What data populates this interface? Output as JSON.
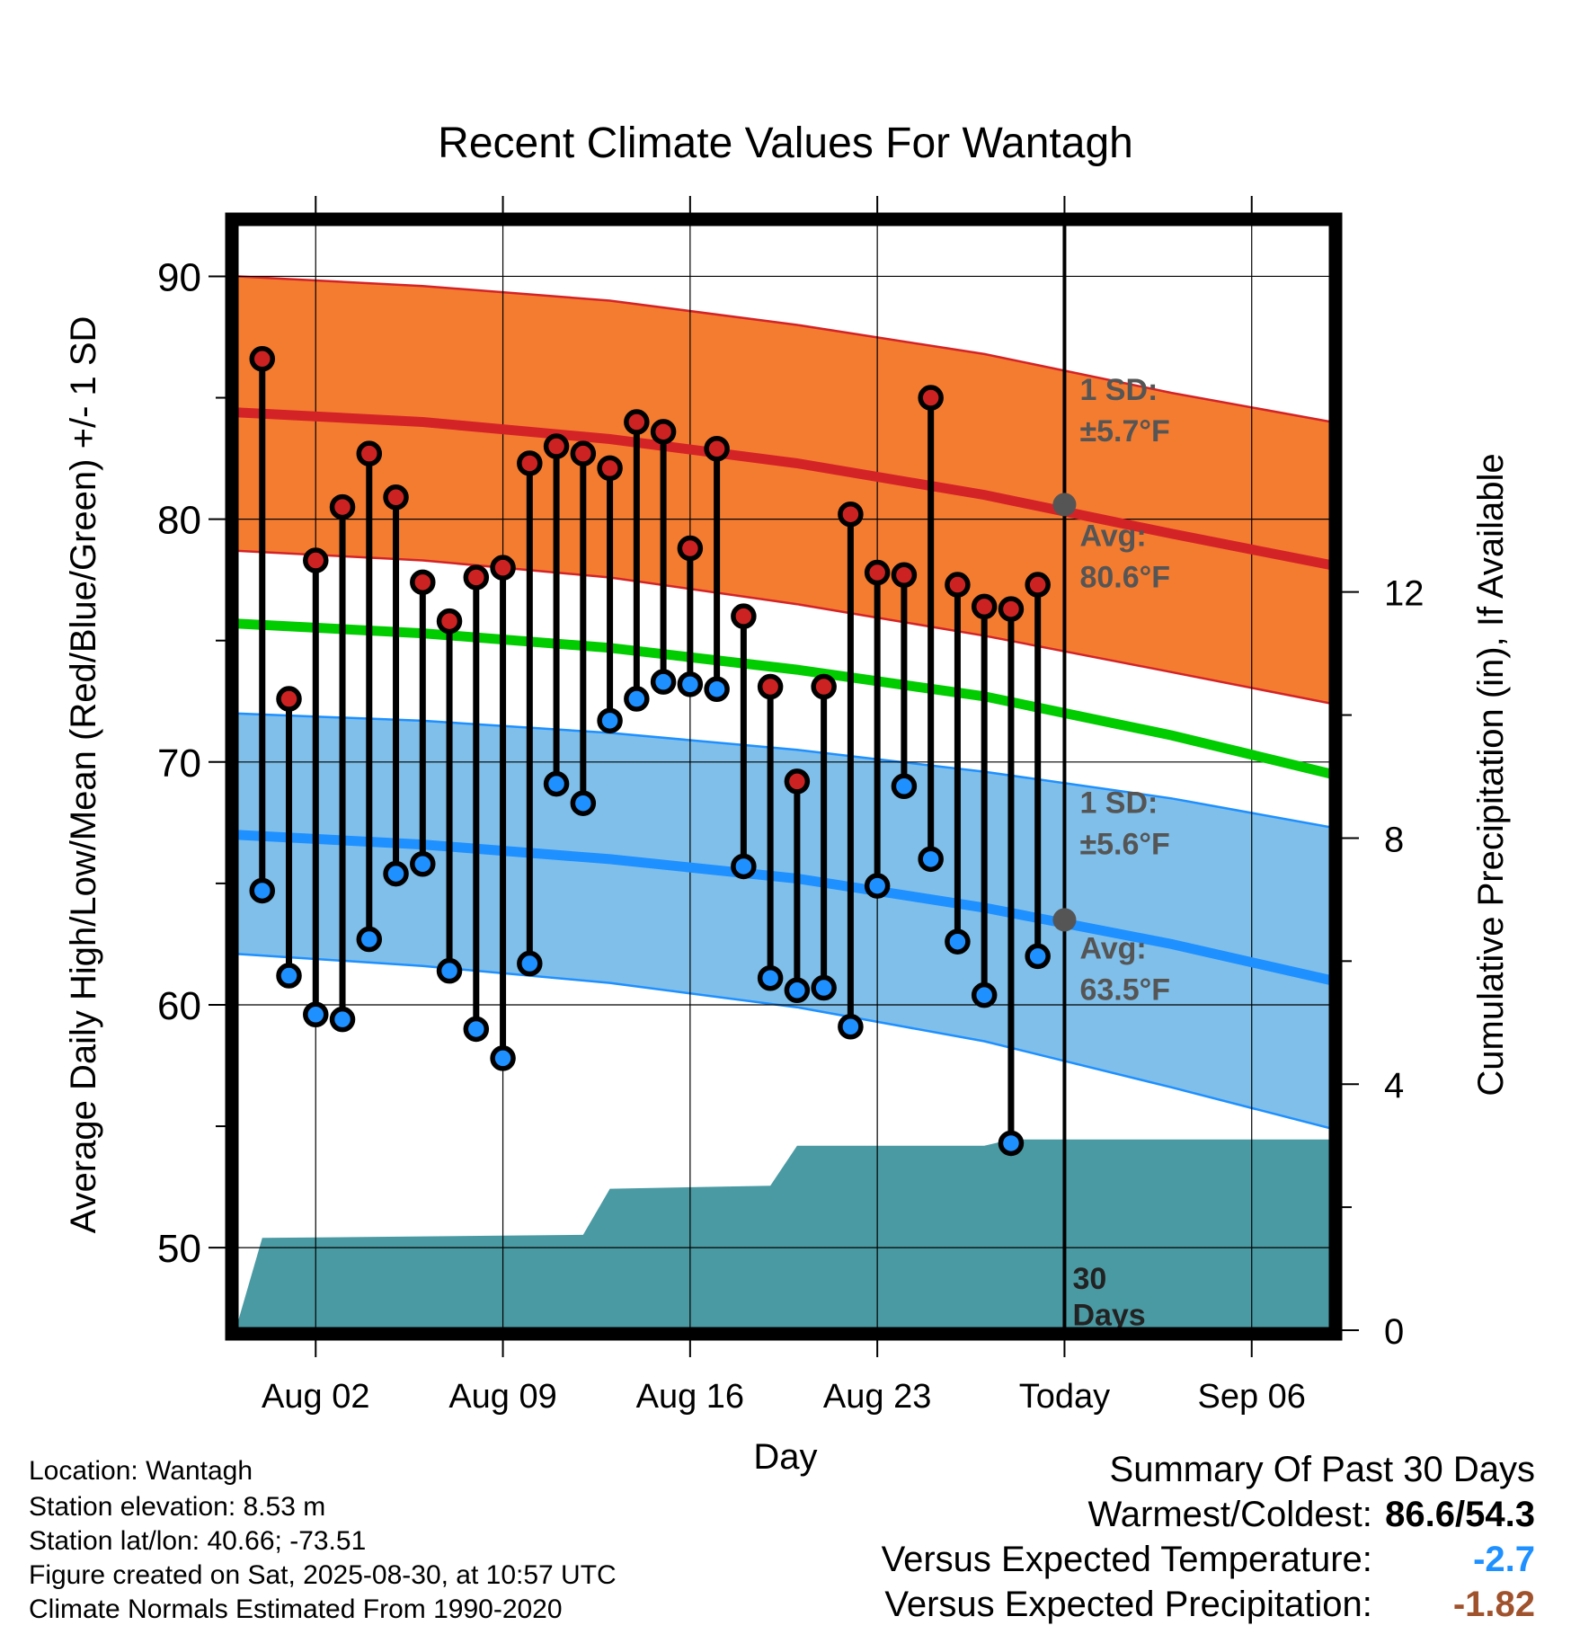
{
  "chart_data": {
    "type": "line",
    "title": "Recent Climate Values For Wantagh",
    "xlabel": "Day",
    "ylabel": "Average Daily High/Low/Mean (Red/Blue/Green) +/- 1 SD",
    "y2label": "Cumulative Precipitation (in), If Available",
    "ylim": [
      46.6,
      92.2
    ],
    "y2lim": [
      0,
      18
    ],
    "xlim": [
      "2025-07-30",
      "2025-09-09"
    ],
    "yticks": [
      50,
      60,
      70,
      80,
      90
    ],
    "y2ticks": [
      0,
      4,
      8,
      12
    ],
    "xticks": [
      {
        "date": "2025-08-02",
        "label": "Aug 02"
      },
      {
        "date": "2025-08-09",
        "label": "Aug 09"
      },
      {
        "date": "2025-08-16",
        "label": "Aug 16"
      },
      {
        "date": "2025-08-23",
        "label": "Aug 23"
      },
      {
        "date": "2025-08-30",
        "label": "Today"
      },
      {
        "date": "2025-09-06",
        "label": "Sep 06"
      }
    ],
    "grid": true,
    "today": "2025-08-30",
    "today_label": [
      "30",
      "Days"
    ],
    "colors": {
      "high_band": "#f47c30",
      "high_line": "#d42327",
      "low_band": "#7fbfe9",
      "low_line": "#1e90ff",
      "mean_line": "#00cc00",
      "precip": "#4a9aa3",
      "high_marker": "#cc2222",
      "low_marker": "#1e90ff",
      "annotation": "#555555",
      "warm_text": "#000000",
      "temp_departure": "#1e90ff",
      "precip_departure": "#a0522d"
    },
    "normal_high": {
      "x": [
        "2025-07-30",
        "2025-08-06",
        "2025-08-13",
        "2025-08-20",
        "2025-08-27",
        "2025-09-03",
        "2025-09-09"
      ],
      "mean": [
        84.4,
        84.0,
        83.3,
        82.3,
        81.0,
        79.4,
        78.1
      ],
      "upper": [
        90.0,
        89.6,
        89.0,
        88.0,
        86.8,
        85.2,
        84.0
      ],
      "lower": [
        78.7,
        78.3,
        77.6,
        76.5,
        75.2,
        73.7,
        72.4
      ]
    },
    "normal_low": {
      "x": [
        "2025-07-30",
        "2025-08-06",
        "2025-08-13",
        "2025-08-20",
        "2025-08-27",
        "2025-09-03",
        "2025-09-09"
      ],
      "mean": [
        67.0,
        66.6,
        66.0,
        65.2,
        64.0,
        62.5,
        61.0
      ],
      "upper": [
        72.0,
        71.7,
        71.2,
        70.5,
        69.6,
        68.5,
        67.3
      ],
      "lower": [
        62.1,
        61.6,
        60.9,
        59.9,
        58.5,
        56.6,
        54.9
      ]
    },
    "normal_mean": {
      "x": [
        "2025-07-30",
        "2025-08-06",
        "2025-08-13",
        "2025-08-20",
        "2025-08-27",
        "2025-09-03",
        "2025-09-09"
      ],
      "values": [
        75.7,
        75.3,
        74.7,
        73.8,
        72.7,
        71.1,
        69.5
      ]
    },
    "observed": {
      "dates": [
        "2025-07-31",
        "2025-08-01",
        "2025-08-02",
        "2025-08-03",
        "2025-08-04",
        "2025-08-05",
        "2025-08-06",
        "2025-08-07",
        "2025-08-08",
        "2025-08-09",
        "2025-08-10",
        "2025-08-11",
        "2025-08-12",
        "2025-08-13",
        "2025-08-14",
        "2025-08-15",
        "2025-08-16",
        "2025-08-17",
        "2025-08-18",
        "2025-08-19",
        "2025-08-20",
        "2025-08-21",
        "2025-08-22",
        "2025-08-23",
        "2025-08-24",
        "2025-08-25",
        "2025-08-26",
        "2025-08-27",
        "2025-08-28",
        "2025-08-29"
      ],
      "high": [
        86.6,
        72.6,
        78.3,
        80.5,
        82.7,
        80.9,
        77.4,
        75.8,
        77.6,
        78.0,
        82.3,
        83.0,
        82.7,
        82.1,
        84.0,
        83.6,
        78.8,
        82.9,
        76.0,
        73.1,
        69.2,
        73.1,
        80.2,
        77.8,
        77.7,
        85.0,
        77.3,
        76.4,
        76.3,
        77.3
      ],
      "low": [
        64.7,
        61.2,
        59.6,
        59.4,
        62.7,
        65.4,
        65.8,
        61.4,
        59.0,
        57.8,
        61.7,
        69.1,
        68.3,
        71.7,
        72.6,
        73.3,
        73.2,
        73.0,
        65.7,
        61.1,
        60.6,
        60.7,
        59.1,
        64.9,
        69.0,
        66.0,
        62.6,
        60.4,
        54.3,
        62.0
      ]
    },
    "precip_cumulative": {
      "x": [
        "2025-07-30",
        "2025-07-31",
        "2025-08-12",
        "2025-08-13",
        "2025-08-19",
        "2025-08-20",
        "2025-08-27",
        "2025-08-28",
        "2025-09-09"
      ],
      "y": [
        0.0,
        1.5,
        1.55,
        2.3,
        2.35,
        3.0,
        3.0,
        3.1,
        3.1
      ]
    },
    "annotations": {
      "high": {
        "sd_title": "1 SD:",
        "sd_value": "±5.7°F",
        "avg_title": "Avg:",
        "avg_value": "80.6°F",
        "avg_today": 80.6
      },
      "low": {
        "sd_title": "1 SD:",
        "sd_value": "±5.6°F",
        "avg_title": "Avg:",
        "avg_value": "63.5°F",
        "avg_today": 63.5
      }
    }
  },
  "info": {
    "location": "Location: Wantagh",
    "elevation": "Station elevation: 8.53 m",
    "latlon": "Station lat/lon: 40.66; -73.51",
    "created": "Figure created on Sat, 2025-08-30, at 10:57 UTC",
    "normals": "Climate Normals Estimated From 1990-2020"
  },
  "summary": {
    "title": "Summary Of Past 30 Days",
    "warmest_label": "Warmest/Coldest:",
    "warmest_value": "86.6/54.3",
    "temp_label": "Versus Expected Temperature:",
    "temp_value": "-2.7",
    "precip_label": "Versus Expected Precipitation:",
    "precip_value": "-1.82"
  }
}
